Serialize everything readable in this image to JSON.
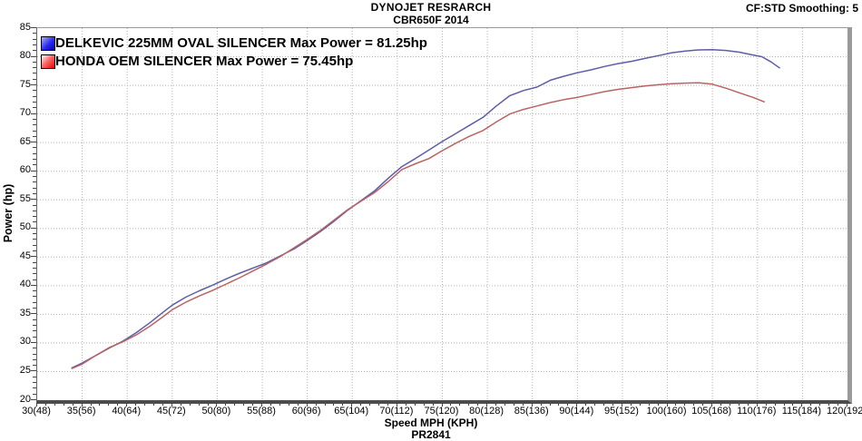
{
  "header": {
    "title": "DYNOJET RESRARCH",
    "subtitle": "CBR650F 2014",
    "smoothing": "CF:STD Smoothing: 5"
  },
  "footer": {
    "x_axis_title": "Speed MPH (KPH)",
    "run_id": "PR2841"
  },
  "axes": {
    "y_label": "Power (hp)"
  },
  "legend": {
    "items": [
      {
        "label": "DELKEVIC 225MM OVAL SILENCER Max Power = 81.25hp",
        "color": "#0000cc"
      },
      {
        "label": "HONDA OEM SILENCER Max Power = 75.45hp",
        "color": "#ee0000"
      }
    ]
  },
  "chart_data": {
    "type": "line",
    "title": "DYNOJET RESRARCH CBR650F 2014",
    "xlabel": "Speed MPH (KPH)",
    "ylabel": "Power (hp)",
    "xlim": [
      30,
      120
    ],
    "ylim": [
      20,
      85
    ],
    "grid": true,
    "legend_position": "top-left",
    "x_ticks": [
      {
        "v": 30,
        "label": "30(48)"
      },
      {
        "v": 35,
        "label": "35(56)"
      },
      {
        "v": 40,
        "label": "40(64)"
      },
      {
        "v": 45,
        "label": "45(72)"
      },
      {
        "v": 50,
        "label": "50(80)"
      },
      {
        "v": 55,
        "label": "55(88)"
      },
      {
        "v": 60,
        "label": "60(96)"
      },
      {
        "v": 65,
        "label": "65(104)"
      },
      {
        "v": 70,
        "label": "70(112)"
      },
      {
        "v": 75,
        "label": "75(120)"
      },
      {
        "v": 80,
        "label": "80(128)"
      },
      {
        "v": 85,
        "label": "85(136)"
      },
      {
        "v": 90,
        "label": "90(144)"
      },
      {
        "v": 95,
        "label": "95(152)"
      },
      {
        "v": 100,
        "label": "100(160)"
      },
      {
        "v": 105,
        "label": "105(168)"
      },
      {
        "v": 110,
        "label": "110(176)"
      },
      {
        "v": 115,
        "label": "115(184)"
      },
      {
        "v": 120,
        "label": "120(192)"
      }
    ],
    "y_ticks": [
      {
        "v": 20,
        "label": "20"
      },
      {
        "v": 25,
        "label": "25"
      },
      {
        "v": 30,
        "label": "30"
      },
      {
        "v": 35,
        "label": "35"
      },
      {
        "v": 40,
        "label": "40"
      },
      {
        "v": 45,
        "label": "45"
      },
      {
        "v": 50,
        "label": "50"
      },
      {
        "v": 55,
        "label": "55"
      },
      {
        "v": 60,
        "label": "60"
      },
      {
        "v": 65,
        "label": "65"
      },
      {
        "v": 70,
        "label": "70"
      },
      {
        "v": 75,
        "label": "75"
      },
      {
        "v": 80,
        "label": "80"
      },
      {
        "v": 85,
        "label": "85"
      }
    ],
    "series": [
      {
        "id": "delkevic",
        "name": "DELKEVIC 225MM OVAL SILENCER",
        "max_power_hp": 81.25,
        "color": "#5d5da8",
        "points": [
          [
            33.8,
            25.6
          ],
          [
            35,
            26.5
          ],
          [
            36.5,
            27.8
          ],
          [
            38,
            29.1
          ],
          [
            39.5,
            30.3
          ],
          [
            41,
            31.8
          ],
          [
            42.5,
            33.5
          ],
          [
            44,
            35.4
          ],
          [
            45,
            36.6
          ],
          [
            46.5,
            38.0
          ],
          [
            48,
            39.1
          ],
          [
            49.5,
            40.1
          ],
          [
            51,
            41.2
          ],
          [
            52.5,
            42.2
          ],
          [
            54,
            43.1
          ],
          [
            55.5,
            44.0
          ],
          [
            57,
            45.2
          ],
          [
            58.5,
            46.4
          ],
          [
            60,
            47.9
          ],
          [
            61.5,
            49.5
          ],
          [
            63,
            51.3
          ],
          [
            64.5,
            53.2
          ],
          [
            66,
            54.9
          ],
          [
            67.5,
            56.6
          ],
          [
            69,
            58.8
          ],
          [
            70.5,
            60.8
          ],
          [
            72,
            62.2
          ],
          [
            73.5,
            63.7
          ],
          [
            75,
            65.2
          ],
          [
            76.5,
            66.6
          ],
          [
            78,
            68.0
          ],
          [
            79.5,
            69.4
          ],
          [
            81,
            71.4
          ],
          [
            82.5,
            73.2
          ],
          [
            84,
            74.1
          ],
          [
            85.5,
            74.7
          ],
          [
            87,
            75.9
          ],
          [
            88.5,
            76.6
          ],
          [
            90,
            77.2
          ],
          [
            91.5,
            77.7
          ],
          [
            93,
            78.3
          ],
          [
            94.5,
            78.8
          ],
          [
            96,
            79.2
          ],
          [
            97.5,
            79.7
          ],
          [
            99,
            80.2
          ],
          [
            100.5,
            80.7
          ],
          [
            102,
            81.0
          ],
          [
            103.5,
            81.2
          ],
          [
            105,
            81.25
          ],
          [
            106.5,
            81.1
          ],
          [
            108,
            80.8
          ],
          [
            109.5,
            80.3
          ],
          [
            110.5,
            80.0
          ],
          [
            111.5,
            79.1
          ],
          [
            112.5,
            78.0
          ]
        ]
      },
      {
        "id": "honda-oem",
        "name": "HONDA OEM SILENCER",
        "max_power_hp": 75.45,
        "color": "#b96363",
        "points": [
          [
            33.8,
            25.5
          ],
          [
            35,
            26.3
          ],
          [
            36.5,
            27.8
          ],
          [
            38,
            29.2
          ],
          [
            39.5,
            30.2
          ],
          [
            41,
            31.4
          ],
          [
            42.5,
            32.9
          ],
          [
            44,
            34.6
          ],
          [
            45,
            35.8
          ],
          [
            46.5,
            37.1
          ],
          [
            48,
            38.2
          ],
          [
            49.5,
            39.2
          ],
          [
            51,
            40.3
          ],
          [
            52.5,
            41.4
          ],
          [
            54,
            42.6
          ],
          [
            55.5,
            43.8
          ],
          [
            57,
            45.1
          ],
          [
            58.5,
            46.6
          ],
          [
            60,
            48.1
          ],
          [
            61.5,
            49.7
          ],
          [
            63,
            51.5
          ],
          [
            64.5,
            53.3
          ],
          [
            66,
            54.8
          ],
          [
            67.5,
            56.3
          ],
          [
            69,
            58.2
          ],
          [
            70.5,
            60.3
          ],
          [
            72,
            61.3
          ],
          [
            73.5,
            62.2
          ],
          [
            75,
            63.6
          ],
          [
            76.5,
            64.9
          ],
          [
            78,
            66.1
          ],
          [
            79.5,
            67.1
          ],
          [
            81,
            68.6
          ],
          [
            82.5,
            70.0
          ],
          [
            84,
            70.8
          ],
          [
            85.5,
            71.4
          ],
          [
            87,
            72.0
          ],
          [
            88.5,
            72.5
          ],
          [
            90,
            72.9
          ],
          [
            91.5,
            73.4
          ],
          [
            93,
            73.9
          ],
          [
            94.5,
            74.3
          ],
          [
            96,
            74.6
          ],
          [
            97.5,
            74.9
          ],
          [
            99,
            75.1
          ],
          [
            100.5,
            75.3
          ],
          [
            102,
            75.4
          ],
          [
            103.5,
            75.45
          ],
          [
            105,
            75.2
          ],
          [
            106.5,
            74.5
          ],
          [
            108,
            73.7
          ],
          [
            109.5,
            72.9
          ],
          [
            110.8,
            72.1
          ]
        ]
      }
    ]
  }
}
